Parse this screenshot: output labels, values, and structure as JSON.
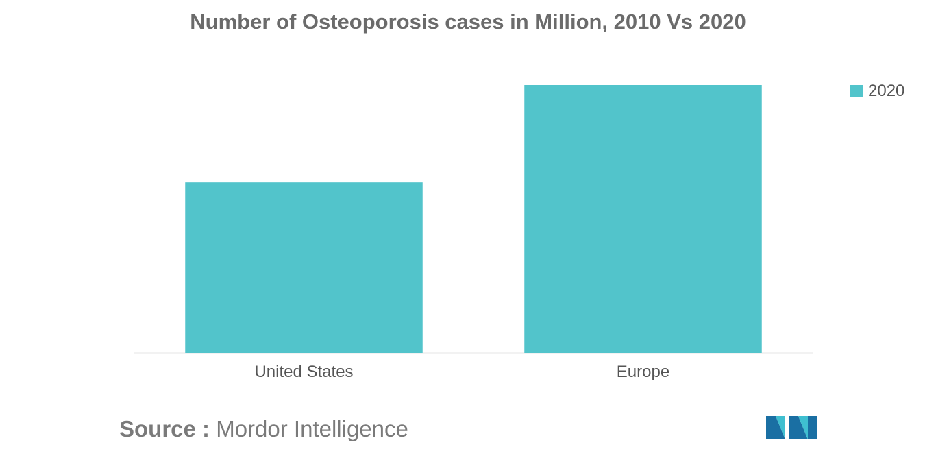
{
  "chart_data": {
    "type": "bar",
    "title": "Number of Osteoporosis cases in Million, 2010 Vs 2020",
    "categories": [
      "United States",
      "Europe"
    ],
    "series": [
      {
        "name": "2020",
        "values": [
          14.0,
          22.0
        ],
        "color": "#52c4cb"
      }
    ],
    "ylim": [
      0,
      22.0
    ],
    "grid": false,
    "legend_position": "top-right",
    "xlabel": "",
    "ylabel": ""
  },
  "source": {
    "label": "Source :",
    "text": "Mordor Intelligence"
  },
  "logo": {
    "icon": "mordor-intelligence-logo",
    "colors": [
      "#1a6fa3",
      "#3fbfd0"
    ]
  }
}
